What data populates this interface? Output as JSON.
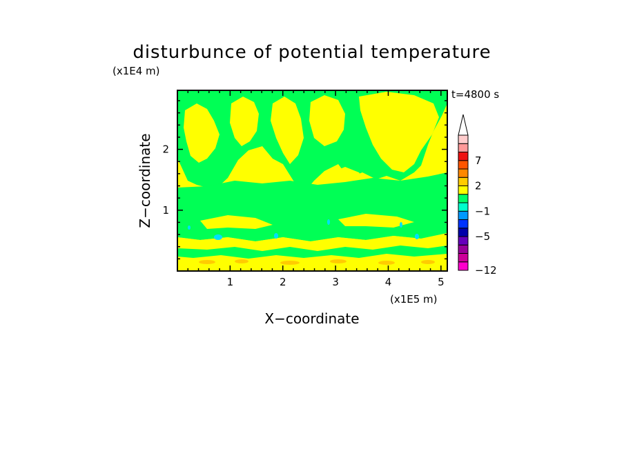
{
  "chart_data": {
    "type": "heatmap",
    "title": "disturbunce of potential temperature",
    "xlabel": "X−coordinate",
    "ylabel": "Z−coordinate",
    "x_multiplier": "(x1E5 m)",
    "y_multiplier": "(x1E4 m)",
    "time_label": "t=4800 s",
    "xlim": [
      0,
      5.12
    ],
    "ylim": [
      0,
      2.97
    ],
    "x_ticks": [
      1,
      2,
      3,
      4,
      5
    ],
    "y_ticks": [
      1,
      2
    ],
    "colorbar": {
      "levels": [
        {
          "color": "#ff00cc",
          "label": "−12"
        },
        {
          "color": "#cc0099",
          "label": ""
        },
        {
          "color": "#990099",
          "label": ""
        },
        {
          "color": "#6600bb",
          "label": ""
        },
        {
          "color": "#0000aa",
          "label": "−5"
        },
        {
          "color": "#0033ff",
          "label": ""
        },
        {
          "color": "#0099ff",
          "label": ""
        },
        {
          "color": "#00ffcc",
          "label": "−1"
        },
        {
          "color": "#00ff66",
          "label": ""
        },
        {
          "color": "#ffff00",
          "label": ""
        },
        {
          "color": "#ffcc00",
          "label": "2"
        },
        {
          "color": "#ff8800",
          "label": ""
        },
        {
          "color": "#ff5500",
          "label": ""
        },
        {
          "color": "#ee1111",
          "label": "7"
        },
        {
          "color": "#ff9999",
          "label": ""
        },
        {
          "color": "#ffcccc",
          "label": ""
        }
      ],
      "extend": "max"
    },
    "field_colors": {
      "warm": "#ffff00",
      "neutral": "#00ff55",
      "cool": "#00e0ff",
      "hot": "#ffcc00"
    }
  }
}
